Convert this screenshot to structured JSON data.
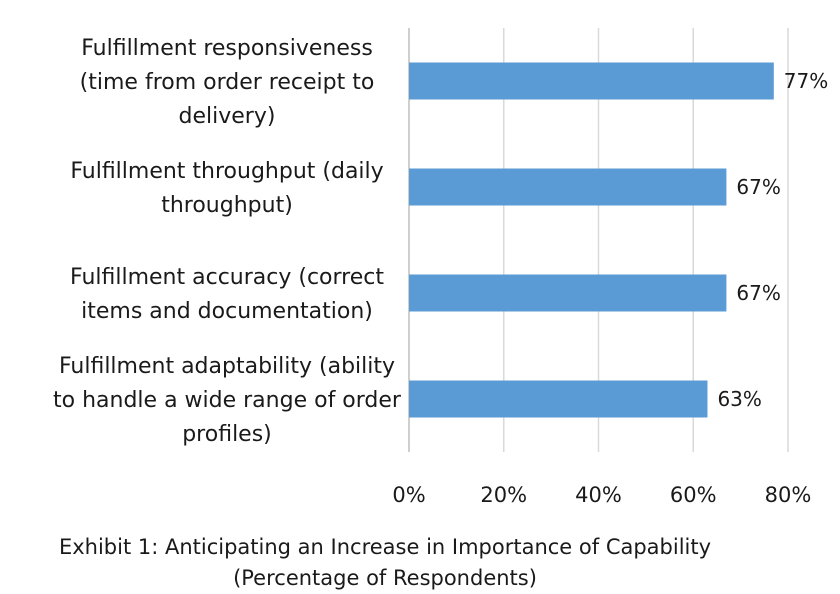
{
  "chart_data": {
    "type": "bar",
    "orientation": "horizontal",
    "categories": [
      [
        "Fulfillment responsiveness",
        "(time from order receipt to",
        "delivery)"
      ],
      [
        "Fulfillment throughput (daily",
        "throughput)"
      ],
      [
        "Fulfillment accuracy (correct",
        "items and documentation)"
      ],
      [
        "Fulfillment adaptability (ability",
        "to handle a wide range of order",
        "profiles)"
      ]
    ],
    "values": [
      77,
      67,
      67,
      63
    ],
    "data_labels": [
      "77%",
      "67%",
      "67%",
      "63%"
    ],
    "xlim": [
      0,
      80
    ],
    "xticks": [
      0,
      20,
      40,
      60,
      80
    ],
    "xtick_labels": [
      "0%",
      "20%",
      "40%",
      "60%",
      "80%"
    ],
    "bar_color": "#5b9bd5",
    "grid": "vertical",
    "legend": "none"
  },
  "caption": {
    "line1": "Exhibit 1: Anticipating an Increase in Importance of  Capability",
    "line2": "(Percentage of Respondents)"
  }
}
